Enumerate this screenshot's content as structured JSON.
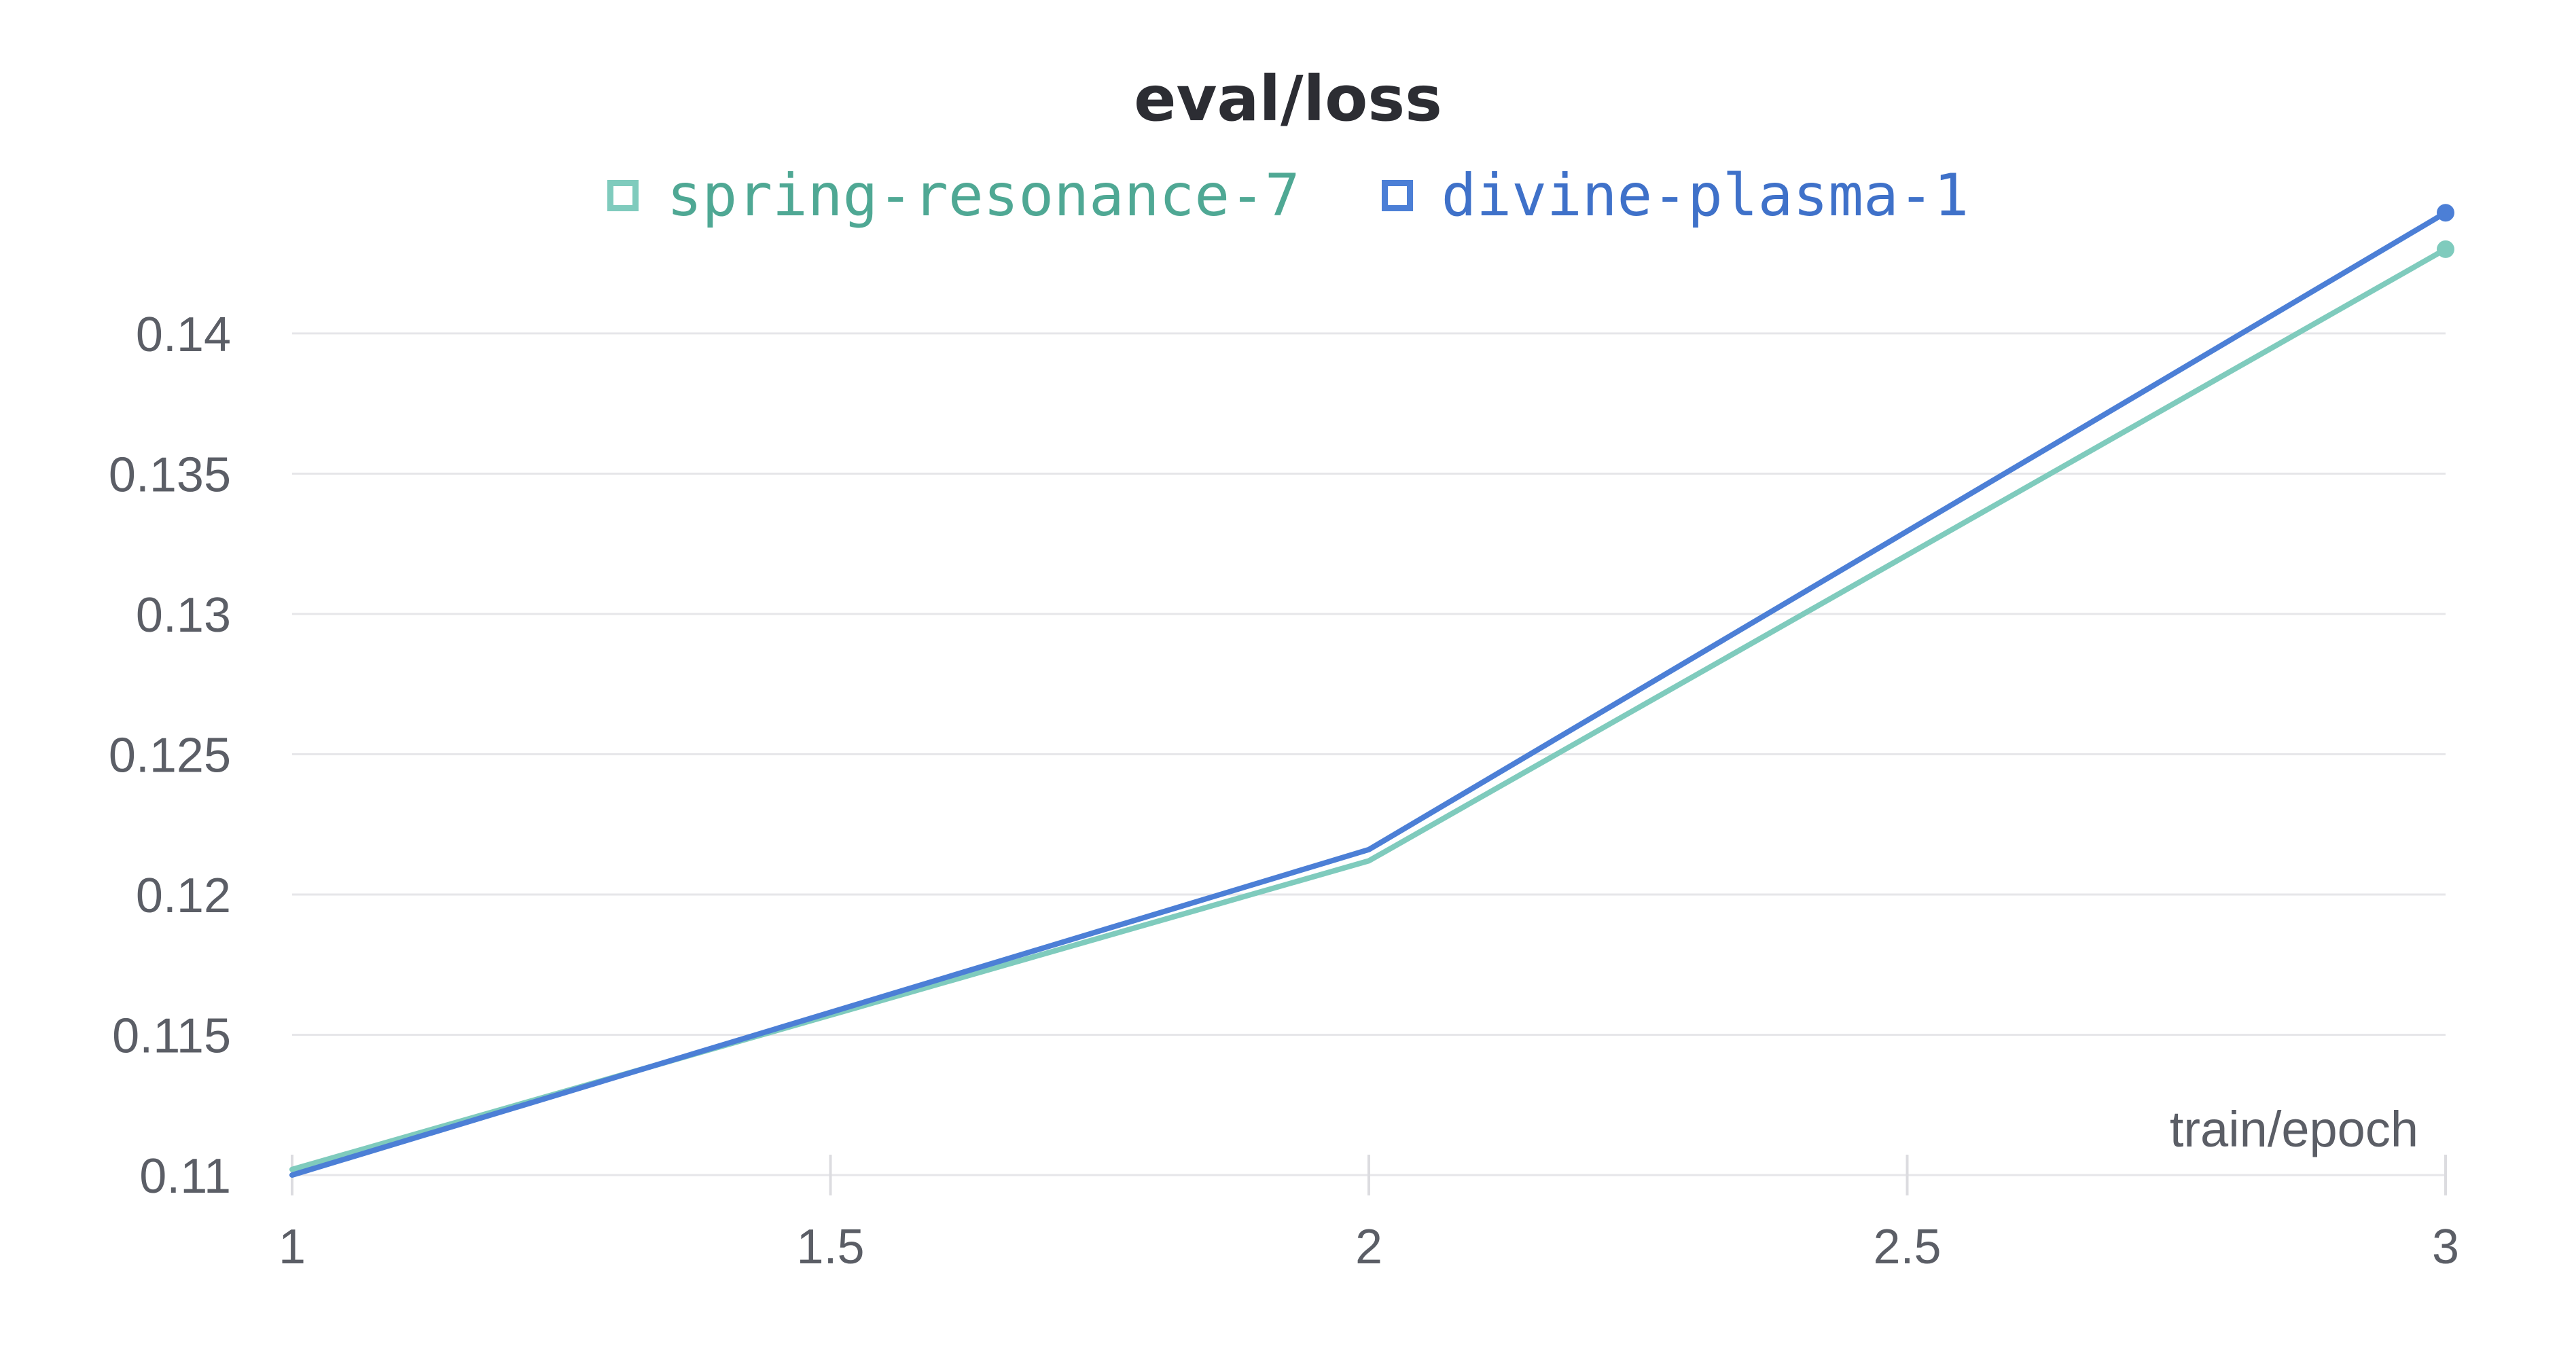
{
  "chart_data": {
    "type": "line",
    "title": "eval/loss",
    "xlabel": "train/epoch",
    "ylabel": "",
    "xlim": [
      1,
      3
    ],
    "ylim": [
      0.11,
      0.14462
    ],
    "x_ticks": [
      "1",
      "1.5",
      "2",
      "2.5",
      "3"
    ],
    "x_tick_values": [
      1,
      1.5,
      2,
      2.5,
      3
    ],
    "y_ticks": [
      "0.11",
      "0.115",
      "0.12",
      "0.125",
      "0.13",
      "0.135",
      "0.14"
    ],
    "y_tick_values": [
      0.11,
      0.115,
      0.12,
      0.125,
      0.13,
      0.135,
      0.14
    ],
    "grid": true,
    "legend_position": "top-center",
    "series": [
      {
        "name": "spring-resonance-7",
        "color": "#7fcbbd",
        "legend_text_color": "#4fa894",
        "x": [
          1,
          2,
          3
        ],
        "y": [
          0.1102,
          0.1212,
          0.143
        ]
      },
      {
        "name": "divine-plasma-1",
        "color": "#4c7fd6",
        "legend_text_color": "#3f71c9",
        "x": [
          1,
          2,
          3
        ],
        "y": [
          0.11,
          0.1216,
          0.1443
        ]
      }
    ]
  }
}
